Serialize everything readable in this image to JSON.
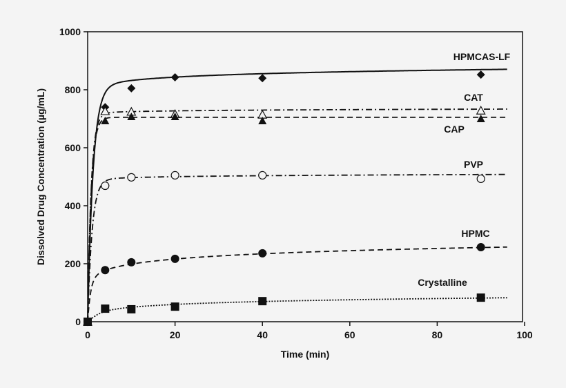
{
  "chart_data": {
    "type": "line",
    "title": "",
    "xlabel": "Time (min)",
    "ylabel": "Dissolved Drug Concentration (µg/mL)",
    "xlim": [
      0,
      100
    ],
    "ylim": [
      0,
      1000
    ],
    "xticks": [
      0,
      20,
      40,
      60,
      80,
      100
    ],
    "yticks": [
      0,
      200,
      400,
      600,
      800,
      1000
    ],
    "grid": false,
    "legend": "inline labels at right end of each curve",
    "x": [
      0,
      4,
      10,
      20,
      40,
      90
    ],
    "series": [
      {
        "name": "HPMCAS-LF",
        "marker": "filled-diamond",
        "line": "solid",
        "values": [
          0,
          740,
          805,
          843,
          840,
          852
        ],
        "fit": {
          "A": 790,
          "s": 17.6,
          "tau": 1.2
        }
      },
      {
        "name": "CAT",
        "marker": "open-triangle",
        "line": "dash-dot",
        "values": [
          0,
          726,
          724,
          716,
          714,
          728
        ],
        "fit": {
          "A": 715,
          "s": 4,
          "tau": 0.8
        }
      },
      {
        "name": "CAP",
        "marker": "filled-triangle",
        "line": "dashed",
        "values": [
          0,
          693,
          707,
          707,
          693,
          700
        ],
        "fit": {
          "A": 705,
          "s": 0,
          "tau": 0.8
        }
      },
      {
        "name": "PVP",
        "marker": "open-circle",
        "line": "dash-dot",
        "values": [
          0,
          469,
          498,
          505,
          505,
          493
        ],
        "fit": {
          "A": 485,
          "s": 5,
          "tau": 1.0
        }
      },
      {
        "name": "HPMC",
        "marker": "filled-circle",
        "line": "dashed",
        "values": [
          0,
          178,
          205,
          217,
          236,
          257
        ],
        "fit": {
          "A": 134,
          "s": 27,
          "tau": 0.6
        }
      },
      {
        "name": "Crystalline",
        "marker": "filled-square",
        "line": "dotted",
        "values": [
          0,
          45,
          43,
          52,
          71,
          83
        ],
        "fit": {
          "A": 14,
          "s": 15,
          "tau": 1.5
        }
      }
    ]
  }
}
